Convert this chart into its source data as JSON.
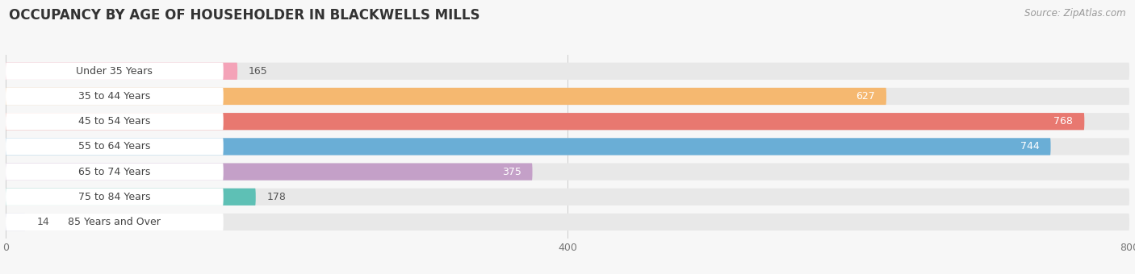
{
  "title": "OCCUPANCY BY AGE OF HOUSEHOLDER IN BLACKWELLS MILLS",
  "source": "Source: ZipAtlas.com",
  "categories": [
    "Under 35 Years",
    "35 to 44 Years",
    "45 to 54 Years",
    "55 to 64 Years",
    "65 to 74 Years",
    "75 to 84 Years",
    "85 Years and Over"
  ],
  "values": [
    165,
    627,
    768,
    744,
    375,
    178,
    14
  ],
  "bar_colors": [
    "#f4a3b8",
    "#f5b870",
    "#e87870",
    "#6aaed6",
    "#c4a0c8",
    "#5ec0b5",
    "#b8b8e0"
  ],
  "xlim_max": 800,
  "xticks": [
    0,
    400,
    800
  ],
  "background_color": "#f7f7f7",
  "bar_bg_color": "#e8e8e8",
  "label_bg_color": "#ffffff",
  "title_fontsize": 12,
  "label_fontsize": 9,
  "value_fontsize": 9,
  "source_fontsize": 8.5,
  "value_threshold": 200
}
